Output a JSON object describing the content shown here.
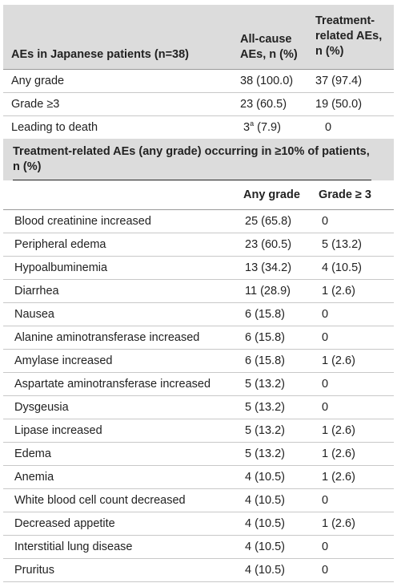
{
  "header": {
    "col1": "AEs in Japanese patients (n=38)",
    "col2_line1": "All-cause",
    "col2_line2": "AEs, n (%)",
    "col3_line1": "Treatment-",
    "col3_line2": "related AEs,",
    "col3_line3": "n (%)"
  },
  "summary_rows": [
    {
      "label": "Any grade",
      "allcause": "38 (100.0)",
      "related": "37 (97.4)"
    },
    {
      "label": "Grade ≥3",
      "allcause": "23 (60.5)",
      "related": "19 (50.0)"
    },
    {
      "label": "Leading to death",
      "allcause_main": "3",
      "allcause_sup": "a",
      "allcause_rest": " (7.9)",
      "related": "0"
    }
  ],
  "subhead": {
    "line1": "Treatment-related AEs (any grade) occurring in ≥10% of patients,",
    "line2": "n (%)"
  },
  "sub_columns": {
    "any": "Any grade",
    "g3": "Grade ≥ 3"
  },
  "ae_rows": [
    {
      "label": "Blood creatinine increased",
      "any": "25 (65.8)",
      "g3": "0"
    },
    {
      "label": "Peripheral edema",
      "any": "23 (60.5)",
      "g3": "5 (13.2)"
    },
    {
      "label": "Hypoalbuminemia",
      "any": "13 (34.2)",
      "g3": "4 (10.5)"
    },
    {
      "label": "Diarrhea",
      "any": "11 (28.9)",
      "g3": "1 (2.6)"
    },
    {
      "label": "Nausea",
      "any": "6 (15.8)",
      "g3": "0"
    },
    {
      "label": "Alanine aminotransferase increased",
      "any": "6 (15.8)",
      "g3": "0"
    },
    {
      "label": "Amylase increased",
      "any": "6 (15.8)",
      "g3": "1 (2.6)"
    },
    {
      "label": "Aspartate aminotransferase increased",
      "any": "5 (13.2)",
      "g3": "0"
    },
    {
      "label": "Dysgeusia",
      "any": "5 (13.2)",
      "g3": "0"
    },
    {
      "label": "Lipase increased",
      "any": "5 (13.2)",
      "g3": "1 (2.6)"
    },
    {
      "label": "Edema",
      "any": "5 (13.2)",
      "g3": "1 (2.6)"
    },
    {
      "label": "Anemia",
      "any": "4 (10.5)",
      "g3": "1 (2.6)"
    },
    {
      "label": "White blood cell count decreased",
      "any": "4 (10.5)",
      "g3": "0"
    },
    {
      "label": "Decreased appetite",
      "any": "4 (10.5)",
      "g3": "1 (2.6)"
    },
    {
      "label": "Interstitial lung disease",
      "any": "4 (10.5)",
      "g3": "0"
    },
    {
      "label": "Pruritus",
      "any": "4 (10.5)",
      "g3": "0"
    }
  ]
}
